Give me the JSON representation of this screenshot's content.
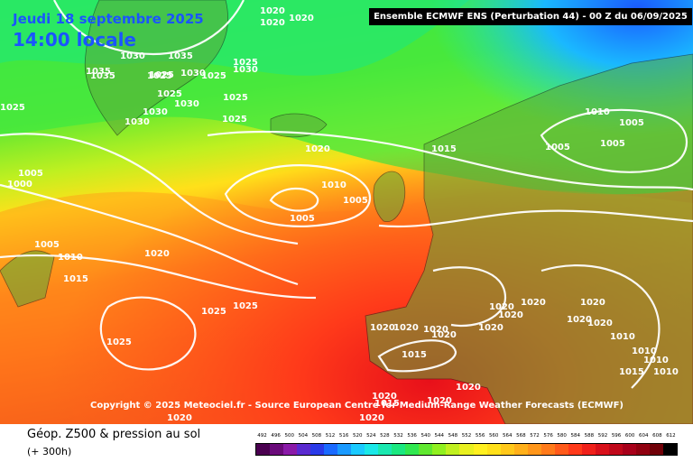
{
  "header": {
    "date_label": "Jeudi 18 septembre 2025",
    "time_label": "14:00 locale",
    "model_label": "Ensemble ECMWF ENS  (Perturbation 44)  - 00 Z du 06/09/2025"
  },
  "copyright": "Copyright © 2025 Meteociel.fr - Source European Centre for Medium-Range Weather Forecasts (ECMWF)",
  "footer": {
    "title": "Géop. Z500 & pression au sol",
    "subtitle": "(+ 300h)"
  },
  "scale": {
    "labels": [
      "492",
      "496",
      "500",
      "504",
      "508",
      "512",
      "516",
      "520",
      "524",
      "528",
      "532",
      "536",
      "540",
      "544",
      "548",
      "552",
      "556",
      "560",
      "564",
      "568",
      "572",
      "576",
      "580",
      "584",
      "588",
      "592",
      "596",
      "600",
      "604",
      "608",
      "612"
    ],
    "colors": [
      "#4a0050",
      "#6a0a7a",
      "#8a1aa8",
      "#5a2ad0",
      "#2a3ae8",
      "#1a6aff",
      "#1a9aff",
      "#1acaff",
      "#1ae8e8",
      "#1ae8b0",
      "#1ae880",
      "#30e850",
      "#60e830",
      "#90f020",
      "#c0f020",
      "#e8f020",
      "#fff020",
      "#ffe01a",
      "#ffc81a",
      "#ffb01a",
      "#ff961a",
      "#ff7a1a",
      "#ff5a1a",
      "#ff3a1a",
      "#f0201a",
      "#d8101a",
      "#c0081a",
      "#a8001a",
      "#900010",
      "#700008",
      "#000000"
    ]
  },
  "isobar_labels": [
    "1020",
    "1020",
    "1020",
    "1035",
    "1035",
    "1035",
    "1030",
    "1025",
    "1030",
    "1025",
    "1025",
    "1025",
    "1025",
    "1030",
    "1025",
    "1030",
    "1030",
    "1030",
    "1025",
    "1025",
    "1020",
    "1005",
    "1000",
    "1005",
    "1010",
    "1015",
    "1020",
    "1010",
    "1005",
    "1005",
    "1015",
    "1010",
    "1005",
    "1005",
    "1005",
    "1025",
    "1025",
    "1025",
    "1020",
    "1020",
    "1020",
    "1020",
    "1020",
    "1020",
    "1020",
    "1020",
    "1020",
    "1020",
    "1020",
    "1015",
    "1010",
    "1010",
    "1010",
    "1010",
    "1015",
    "1020",
    "1015",
    "1020",
    "1020",
    "1020",
    "1020"
  ]
}
